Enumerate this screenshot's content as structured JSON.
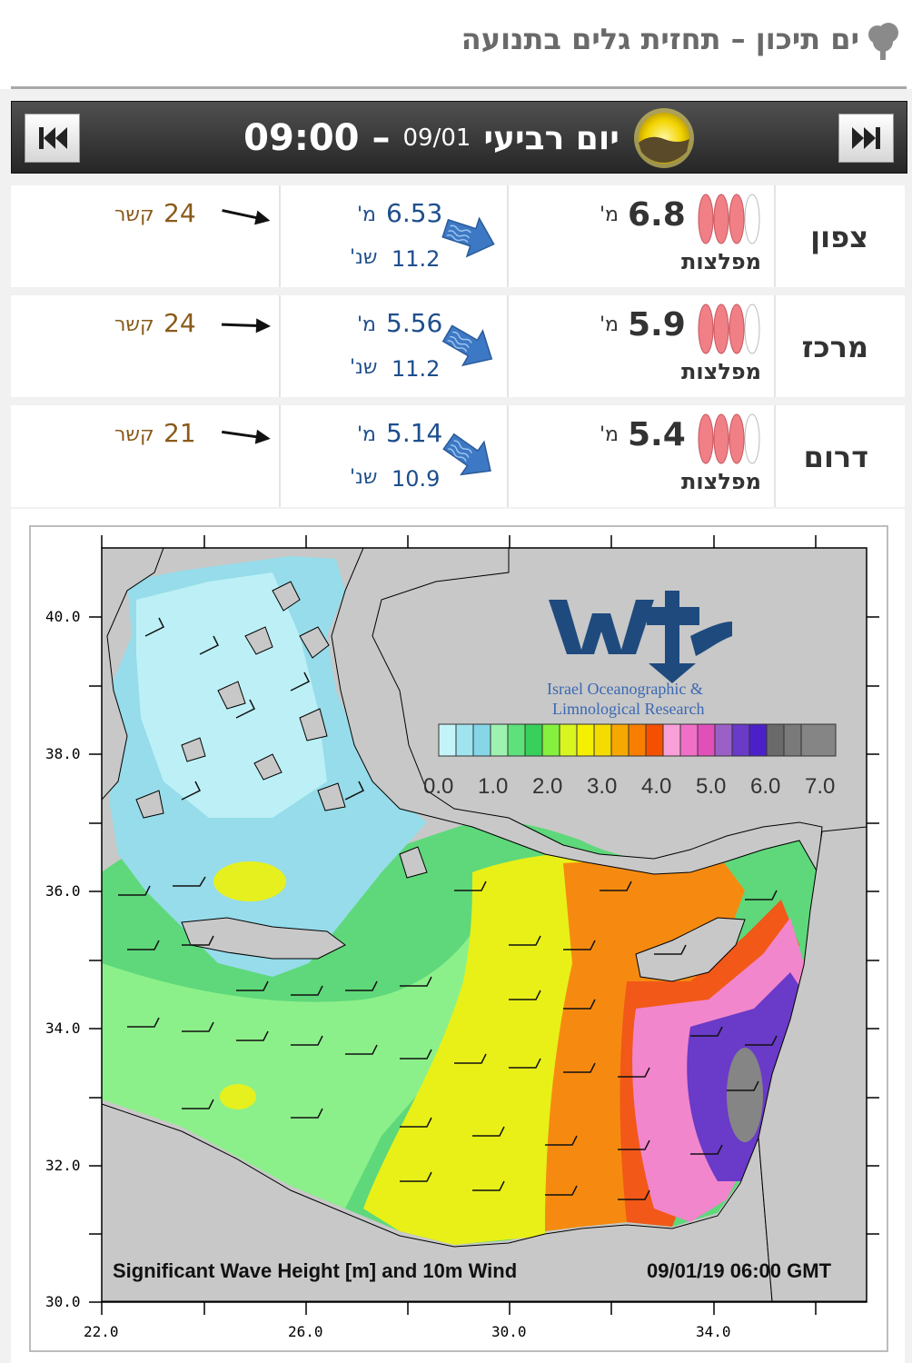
{
  "header": {
    "title": "ים תיכון – תחזית גלים בתנועה"
  },
  "nav": {
    "day_name": "יום רביעי",
    "date": "09/01",
    "dash": "–",
    "hour": "09:00"
  },
  "rows": [
    {
      "region": "צפון",
      "height": "6.8",
      "height_unit": "מ'",
      "height_label": "מפלצות",
      "swell_height": "6.53",
      "swell_height_unit": "מ'",
      "swell_period": "11.2",
      "swell_period_unit": "שנ'",
      "wind_speed": "24",
      "wind_unit": "קשר"
    },
    {
      "region": "מרכז",
      "height": "5.9",
      "height_unit": "מ'",
      "height_label": "מפלצות",
      "swell_height": "5.56",
      "swell_height_unit": "מ'",
      "swell_period": "11.2",
      "swell_period_unit": "שנ'",
      "wind_speed": "24",
      "wind_unit": "קשר"
    },
    {
      "region": "דרום",
      "height": "5.4",
      "height_unit": "מ'",
      "height_label": "מפלצות",
      "swell_height": "5.14",
      "swell_height_unit": "מ'",
      "swell_period": "10.9",
      "swell_period_unit": "שנ'",
      "wind_speed": "21",
      "wind_unit": "קשר"
    }
  ],
  "icons": {
    "prev": "skip-back-icon",
    "next": "skip-forward-icon",
    "sun": "sun-icon",
    "tree": "tree-icon",
    "surfboard": "surfboard-icon",
    "swell": "swell-arrow-icon",
    "wind": "wind-arrow-icon"
  },
  "colors": {
    "nav_bg": "#3a3a3a",
    "surfboard": "#f07f86",
    "swell": "#3d78c4",
    "wind_text": "#8a5a1a",
    "swell_text": "#1e4e8c",
    "map_land": "#c8c8c8"
  },
  "map": {
    "caption_left": "Significant Wave Height [m] and 10m Wind",
    "caption_right": "09/01/19 06:00 GMT",
    "org_line1": "Israel Oceanographic &",
    "org_line2": "Limnological Research",
    "y_ticks": [
      "40.0",
      "38.0",
      "36.0",
      "34.0",
      "32.0",
      "30.0"
    ],
    "x_ticks": [
      "22.0",
      "26.0",
      "30.0",
      "34.0"
    ],
    "scale_labels": [
      "0.0",
      "1.0",
      "2.0",
      "3.0",
      "4.0",
      "5.0",
      "6.0",
      "7.0"
    ],
    "scale_colors": [
      "#c4f4f8",
      "#a0e4f0",
      "#86d6e8",
      "#9ef2b0",
      "#5ee07a",
      "#38d05a",
      "#86f03e",
      "#d8f520",
      "#f5f000",
      "#f4dc00",
      "#f6a800",
      "#f87e00",
      "#f45000",
      "#f8a0d8",
      "#f070c8",
      "#e050b8",
      "#9a60c8",
      "#6a3ac8",
      "#4c20c8",
      "#6a6a6a",
      "#7a7a7a",
      "#858585"
    ],
    "wave_scale_max_m": 7.0
  },
  "chart_data": {
    "type": "heatmap",
    "title": "Significant Wave Height [m] and 10m Wind",
    "timestamp": "09/01/19 06:00 GMT",
    "colorbar_ticks": [
      0,
      1,
      2,
      3,
      4,
      5,
      6,
      7
    ],
    "colorbar_range": [
      0,
      7
    ],
    "xlim": [
      22,
      37
    ],
    "ylim": [
      30,
      41
    ],
    "x_ticks": [
      22,
      26,
      30,
      34
    ],
    "y_ticks": [
      30,
      32,
      34,
      36,
      38,
      40
    ]
  }
}
